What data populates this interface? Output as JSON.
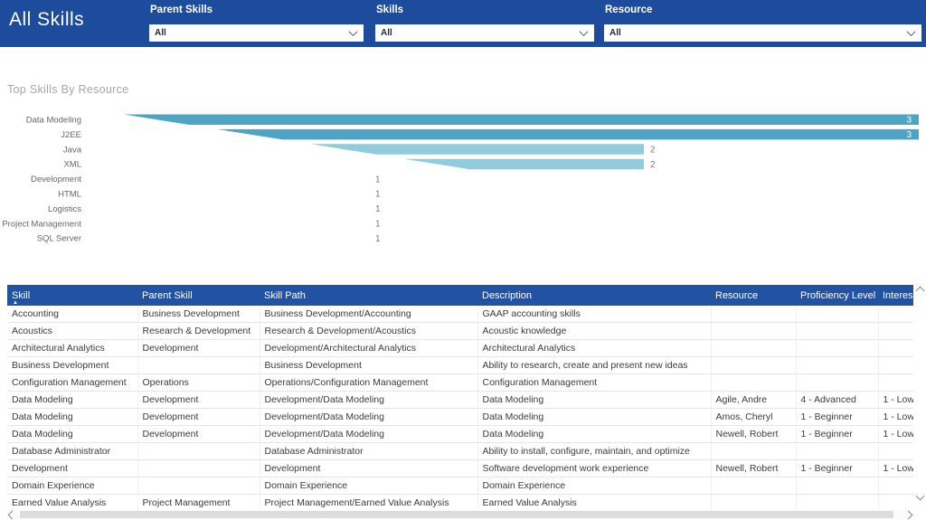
{
  "header": {
    "title": "All Skills",
    "filters": [
      {
        "label": "Parent Skills",
        "value": "All"
      },
      {
        "label": "Skills",
        "value": "All"
      },
      {
        "label": "Resource",
        "value": "All"
      }
    ]
  },
  "chart_data": {
    "type": "bar",
    "orientation": "horizontal",
    "title": "Top Skills By Resource",
    "categories": [
      "Data Modeling",
      "J2EE",
      "Java",
      "XML",
      "Development",
      "HTML",
      "Logistics",
      "Project Management",
      "SQL Server"
    ],
    "values": [
      3,
      3,
      2,
      2,
      1,
      1,
      1,
      1,
      1
    ],
    "xlim": [
      0,
      3
    ],
    "grid": false,
    "colors": {
      "bar_high": "#4DA4C4",
      "bar_low": "#92CADE",
      "label_inside": "#FFFFFF",
      "label_outside": "#777777",
      "category": "#666666"
    }
  },
  "table": {
    "columns": [
      "Skill",
      "Parent Skill",
      "Skill Path",
      "Description",
      "Resource",
      "Proficiency Level",
      "Interest Level"
    ],
    "sort": {
      "column": "Skill",
      "direction": "asc"
    },
    "rows": [
      [
        "Accounting",
        "Business Development",
        "Business Development/Accounting",
        "GAAP accounting skills",
        "",
        "",
        ""
      ],
      [
        "Acoustics",
        "Research & Development",
        "Research & Development/Acoustics",
        "Acoustic knowledge",
        "",
        "",
        ""
      ],
      [
        "Architectural Analytics",
        "Development",
        "Development/Architectural Analytics",
        "Architectural Analytics",
        "",
        "",
        ""
      ],
      [
        "Business Development",
        "",
        "Business Development",
        "Ability to research, create and present new ideas",
        "",
        "",
        ""
      ],
      [
        "Configuration Management",
        "Operations",
        "Operations/Configuration Management",
        "Configuration Management",
        "",
        "",
        ""
      ],
      [
        "Data Modeling",
        "Development",
        "Development/Data Modeling",
        "Data Modeling",
        "Agile, Andre",
        "4 - Advanced",
        "1 - Low"
      ],
      [
        "Data Modeling",
        "Development",
        "Development/Data Modeling",
        "Data Modeling",
        "Amos, Cheryl",
        "1 - Beginner",
        "1 - Low"
      ],
      [
        "Data Modeling",
        "Development",
        "Development/Data Modeling",
        "Data Modeling",
        "Newell, Robert",
        "1 - Beginner",
        "1 - Low"
      ],
      [
        "Database Administrator",
        "",
        "Database Administrator",
        "Ability to install, configure, maintain, and optimize",
        "",
        "",
        ""
      ],
      [
        "Development",
        "",
        "Development",
        "Software development work experience",
        "Newell, Robert",
        "1 - Beginner",
        "1 - Low"
      ],
      [
        "Domain Experience",
        "",
        "Domain Experience",
        "Domain Experience",
        "",
        "",
        ""
      ],
      [
        "Earned Value Analysis",
        "Project Management",
        "Project Management/Earned Value Analysis",
        "Earned Value Analysis",
        "",
        "",
        ""
      ]
    ]
  },
  "colors": {
    "topbar_background": "#1E4C9C",
    "table_header_background": "#2253A2"
  }
}
